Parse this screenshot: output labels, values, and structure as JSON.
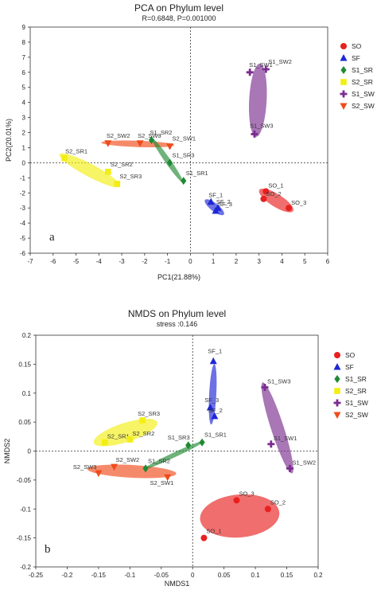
{
  "legend": [
    {
      "name": "SO",
      "color": "#e8201f",
      "shape": "circle"
    },
    {
      "name": "SF",
      "color": "#1d27d6",
      "shape": "triangle"
    },
    {
      "name": "S1_SR",
      "color": "#1f8a33",
      "shape": "diamond"
    },
    {
      "name": "S2_SR",
      "color": "#f2ee12",
      "shape": "square"
    },
    {
      "name": "S1_SW",
      "color": "#7b2c8f",
      "shape": "plus"
    },
    {
      "name": "S2_SW",
      "color": "#ef4b1b",
      "shape": "downtriangle"
    }
  ],
  "chart_data": [
    {
      "type": "scatter",
      "panel_label": "a",
      "title": "PCA on Phylum level",
      "subtitle": "R=0.6848, P=0.001000",
      "xlabel": "PC1(21.88%)",
      "ylabel": "PC2(20.01%)",
      "xlim": [
        -7,
        6
      ],
      "ylim": [
        -6,
        9
      ],
      "xticks": [
        "-7",
        "-6",
        "-5",
        "-4",
        "-3",
        "-2",
        "-1",
        "0",
        "1",
        "2",
        "3",
        "4",
        "5",
        "6"
      ],
      "yticks": [
        "-6",
        "-5",
        "-4",
        "-3",
        "-2",
        "-1",
        "0",
        "1",
        "2",
        "3",
        "4",
        "5",
        "6",
        "7",
        "8",
        "9"
      ],
      "reference_lines": {
        "x": 0,
        "y": 0
      },
      "series": [
        {
          "name": "SO",
          "points": [
            {
              "label": "SO_1",
              "x": 3.3,
              "y": -1.9
            },
            {
              "label": "SO_2",
              "x": 3.2,
              "y": -2.4
            },
            {
              "label": "SO_3",
              "x": 4.3,
              "y": -3.0
            }
          ]
        },
        {
          "name": "SF",
          "points": [
            {
              "label": "SF_1",
              "x": 0.9,
              "y": -2.6
            },
            {
              "label": "SF_3",
              "x": 1.1,
              "y": -3.2
            },
            {
              "label": "SF_2",
              "x": 1.2,
              "y": -3.0
            }
          ]
        },
        {
          "name": "S1_SR",
          "points": [
            {
              "label": "S1_SR2",
              "x": -1.7,
              "y": 1.5
            },
            {
              "label": "S1_SR3",
              "x": -0.9,
              "y": 0.0
            },
            {
              "label": "S1_SR1",
              "x": -0.3,
              "y": -1.2
            }
          ]
        },
        {
          "name": "S2_SR",
          "points": [
            {
              "label": "S2_SR1",
              "x": -5.5,
              "y": 0.3
            },
            {
              "label": "S2_SR2",
              "x": -3.6,
              "y": -0.6
            },
            {
              "label": "S2_SR3",
              "x": -3.2,
              "y": -1.4
            }
          ]
        },
        {
          "name": "S1_SW",
          "points": [
            {
              "label": "S1_SW1",
              "x": 2.6,
              "y": 6.0
            },
            {
              "label": "S1_SW2",
              "x": 3.3,
              "y": 6.2
            },
            {
              "label": "S1_SW3",
              "x": 2.8,
              "y": 1.9
            }
          ]
        },
        {
          "name": "S2_SW",
          "points": [
            {
              "label": "S2_SW2",
              "x": -3.6,
              "y": 1.3
            },
            {
              "label": "S2_SW3",
              "x": -2.2,
              "y": 1.3
            },
            {
              "label": "S2_SW1",
              "x": -0.9,
              "y": 1.1
            }
          ]
        }
      ]
    },
    {
      "type": "scatter",
      "panel_label": "b",
      "title": "NMDS on Phylum level",
      "subtitle": "stress :0.146",
      "xlabel": "NMDS1",
      "ylabel": "NMDS2",
      "xlim": [
        -0.25,
        0.2
      ],
      "ylim": [
        -0.2,
        0.2
      ],
      "xticks": [
        "-0.25",
        "-0.2",
        "-0.15",
        "-0.1",
        "-0.05",
        "0",
        "0.05",
        "0.1",
        "0.15",
        "0.2"
      ],
      "yticks": [
        "-0.2",
        "-0.15",
        "-0.1",
        "-0.05",
        "0",
        "0.05",
        "0.1",
        "0.15",
        "0.2"
      ],
      "reference_lines": {
        "x": 0,
        "y": 0
      },
      "series": [
        {
          "name": "SO",
          "points": [
            {
              "label": "SO_1",
              "x": 0.018,
              "y": -0.15
            },
            {
              "label": "SO_3",
              "x": 0.07,
              "y": -0.085
            },
            {
              "label": "SO_2",
              "x": 0.12,
              "y": -0.1
            }
          ]
        },
        {
          "name": "SF",
          "points": [
            {
              "label": "SF_1",
              "x": 0.033,
              "y": 0.155
            },
            {
              "label": "SF_3",
              "x": 0.028,
              "y": 0.075
            },
            {
              "label": "SF_2",
              "x": 0.035,
              "y": 0.06
            }
          ]
        },
        {
          "name": "S1_SR",
          "points": [
            {
              "label": "S1_SR2",
              "x": -0.075,
              "y": -0.03
            },
            {
              "label": "S1_SR3",
              "x": -0.007,
              "y": 0.01
            },
            {
              "label": "S1_SR1",
              "x": 0.015,
              "y": 0.015
            }
          ]
        },
        {
          "name": "S2_SR",
          "points": [
            {
              "label": "S2_SR1",
              "x": -0.14,
              "y": 0.015
            },
            {
              "label": "S2_SR3",
              "x": -0.08,
              "y": 0.053
            },
            {
              "label": "S2_SR2",
              "x": -0.1,
              "y": 0.02
            }
          ]
        },
        {
          "name": "S1_SW",
          "points": [
            {
              "label": "S1_SW3",
              "x": 0.115,
              "y": 0.11
            },
            {
              "label": "S1_SW1",
              "x": 0.125,
              "y": 0.012
            },
            {
              "label": "S1_SW2",
              "x": 0.155,
              "y": -0.03
            }
          ]
        },
        {
          "name": "S2_SW",
          "points": [
            {
              "label": "S2_SW3",
              "x": -0.15,
              "y": -0.038
            },
            {
              "label": "S2_SW2",
              "x": -0.125,
              "y": -0.027
            },
            {
              "label": "S2_SW1",
              "x": -0.04,
              "y": -0.045
            }
          ]
        }
      ]
    }
  ]
}
